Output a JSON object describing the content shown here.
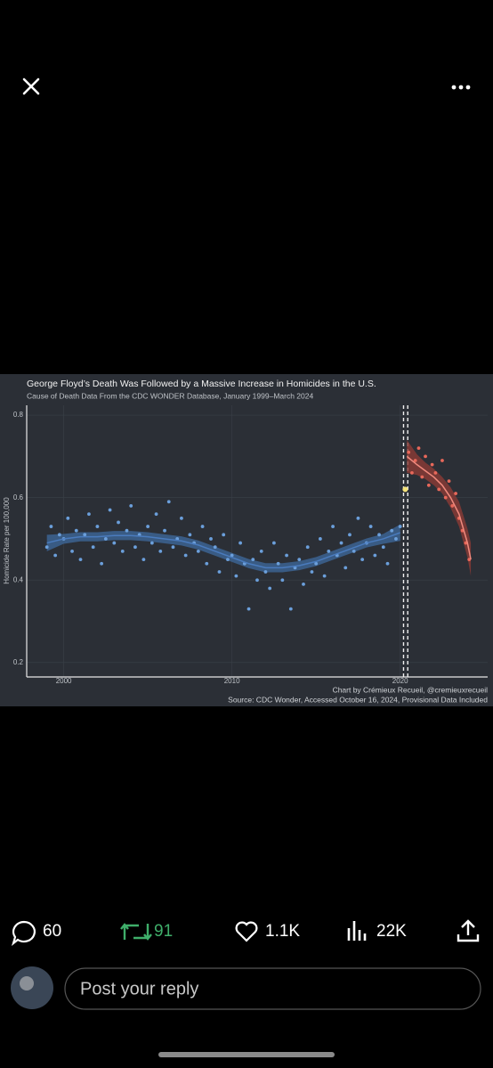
{
  "ui": {
    "reply_count": "60",
    "repost_count": "91",
    "like_count": "1.1K",
    "view_count": "22K",
    "reply_placeholder": "Post your reply"
  },
  "chart_data": {
    "type": "scatter",
    "title": "George Floyd’s Death Was Followed by a Massive Increase in Homicides in the U.S.",
    "subtitle": "Cause of Death Data From the CDC WONDER Database, January 1999–March 2024",
    "y_label": "Homicide Rate per 100,000",
    "credit": "Chart by Crémieux Recueil, @cremieuxrecueil",
    "source": "Source: CDC Wonder, Accessed October 16, 2024, Provisional Data Included",
    "xlim": [
      1997.8,
      2025.2
    ],
    "ylim": [
      0.165,
      0.824
    ],
    "xticks": [
      2000,
      2010,
      2020
    ],
    "yticks": [
      0.2,
      0.4,
      0.6,
      0.8
    ],
    "grid": true,
    "vlines": [
      2020.2,
      2020.45
    ],
    "series": [
      {
        "color": "#6b9fdb",
        "x": [
          1999,
          1999.25,
          1999.5,
          1999.75,
          2000,
          2000.25,
          2000.5,
          2000.75,
          2001,
          2001.25,
          2001.5,
          2001.75,
          2002,
          2002.25,
          2002.5,
          2002.75,
          2003,
          2003.25,
          2003.5,
          2003.75,
          2004,
          2004.25,
          2004.5,
          2004.75,
          2005,
          2005.25,
          2005.5,
          2005.75,
          2006,
          2006.25,
          2006.5,
          2006.75,
          2007,
          2007.25,
          2007.5,
          2007.75,
          2008,
          2008.25,
          2008.5,
          2008.75,
          2009,
          2009.25,
          2009.5,
          2009.75,
          2010,
          2010.25,
          2010.5,
          2010.75,
          2011,
          2011.25,
          2011.5,
          2011.75,
          2012,
          2012.25,
          2012.5,
          2012.75,
          2013,
          2013.25,
          2013.5,
          2013.75,
          2014,
          2014.25,
          2014.5,
          2014.75,
          2015,
          2015.25,
          2015.5,
          2015.75,
          2016,
          2016.25,
          2016.5,
          2016.75,
          2017,
          2017.25,
          2017.5,
          2017.75,
          2018,
          2018.25,
          2018.5,
          2018.75,
          2019,
          2019.25,
          2019.5,
          2019.75,
          2020
        ],
        "values": [
          0.48,
          0.53,
          0.46,
          0.51,
          0.5,
          0.55,
          0.47,
          0.52,
          0.45,
          0.51,
          0.56,
          0.48,
          0.53,
          0.44,
          0.5,
          0.57,
          0.49,
          0.54,
          0.47,
          0.52,
          0.58,
          0.48,
          0.51,
          0.45,
          0.53,
          0.49,
          0.56,
          0.47,
          0.52,
          0.59,
          0.48,
          0.5,
          0.55,
          0.46,
          0.51,
          0.49,
          0.47,
          0.53,
          0.44,
          0.5,
          0.48,
          0.42,
          0.51,
          0.45,
          0.46,
          0.41,
          0.49,
          0.44,
          0.33,
          0.45,
          0.4,
          0.47,
          0.42,
          0.38,
          0.49,
          0.44,
          0.4,
          0.46,
          0.33,
          0.43,
          0.45,
          0.39,
          0.48,
          0.42,
          0.44,
          0.5,
          0.41,
          0.47,
          0.53,
          0.46,
          0.49,
          0.43,
          0.51,
          0.47,
          0.55,
          0.45,
          0.49,
          0.53,
          0.46,
          0.51,
          0.48,
          0.44,
          0.52,
          0.5,
          0.53
        ]
      },
      {
        "color": "#e8685a",
        "x": [
          2020.5,
          2020.7,
          2020.9,
          2021.1,
          2021.3,
          2021.5,
          2021.7,
          2021.9,
          2022.1,
          2022.3,
          2022.5,
          2022.7,
          2022.9,
          2023.1,
          2023.3,
          2023.5,
          2023.7,
          2023.9,
          2024.1
        ],
        "values": [
          0.71,
          0.66,
          0.69,
          0.72,
          0.65,
          0.7,
          0.63,
          0.68,
          0.66,
          0.62,
          0.69,
          0.6,
          0.64,
          0.58,
          0.61,
          0.55,
          0.52,
          0.49,
          0.45
        ]
      },
      {
        "color": "#f3e27a",
        "x": [
          2020.3
        ],
        "values": [
          0.62
        ]
      }
    ],
    "trends": [
      {
        "color": "#4a7bbd",
        "band_color": "#3d6699",
        "x": [
          1999,
          2000,
          2001,
          2002,
          2003,
          2004,
          2005,
          2006,
          2007,
          2008,
          2009,
          2010,
          2011,
          2012,
          2013,
          2014,
          2015,
          2016,
          2017,
          2018,
          2019,
          2020
        ],
        "values": [
          0.49,
          0.5,
          0.505,
          0.505,
          0.508,
          0.508,
          0.505,
          0.5,
          0.495,
          0.485,
          0.47,
          0.455,
          0.44,
          0.43,
          0.43,
          0.435,
          0.445,
          0.46,
          0.475,
          0.49,
          0.5,
          0.515
        ],
        "lower": [
          0.47,
          0.488,
          0.494,
          0.494,
          0.497,
          0.497,
          0.494,
          0.489,
          0.484,
          0.474,
          0.459,
          0.444,
          0.429,
          0.419,
          0.419,
          0.424,
          0.434,
          0.449,
          0.464,
          0.479,
          0.488,
          0.495
        ],
        "upper": [
          0.51,
          0.512,
          0.516,
          0.516,
          0.519,
          0.519,
          0.516,
          0.511,
          0.506,
          0.496,
          0.481,
          0.466,
          0.451,
          0.441,
          0.441,
          0.446,
          0.456,
          0.471,
          0.486,
          0.501,
          0.512,
          0.535
        ]
      },
      {
        "color": "#f08a7e",
        "band_color": "#8c3b36",
        "x": [
          2020.4,
          2021,
          2021.5,
          2022,
          2022.5,
          2023,
          2023.5,
          2024,
          2024.2
        ],
        "values": [
          0.7,
          0.68,
          0.665,
          0.65,
          0.63,
          0.6,
          0.56,
          0.49,
          0.45
        ],
        "lower": [
          0.66,
          0.655,
          0.645,
          0.63,
          0.61,
          0.575,
          0.53,
          0.455,
          0.41
        ],
        "upper": [
          0.74,
          0.705,
          0.685,
          0.67,
          0.65,
          0.625,
          0.59,
          0.525,
          0.49
        ]
      }
    ]
  }
}
